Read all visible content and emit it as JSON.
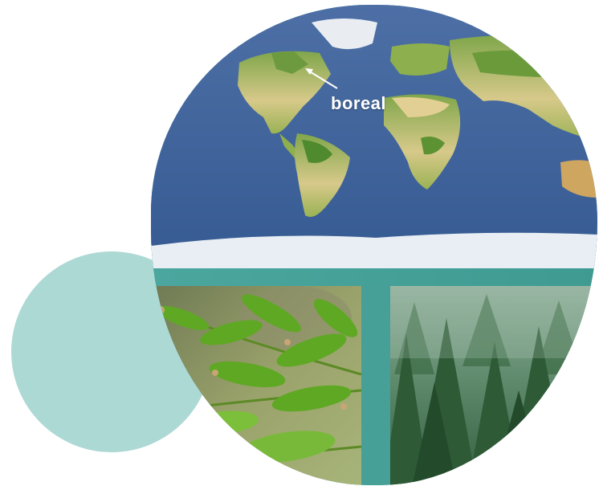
{
  "map": {
    "label": "boreal",
    "icon": "arrow-icon"
  },
  "photos": {
    "left_subject": "spruce-branch",
    "right_subject": "misty-conifer-forest"
  },
  "colors": {
    "teal_bubble": "#a9d7d2",
    "teal_frame": "#4aa39a",
    "ocean": "#3d5e95",
    "ice": "#e8eef4"
  }
}
